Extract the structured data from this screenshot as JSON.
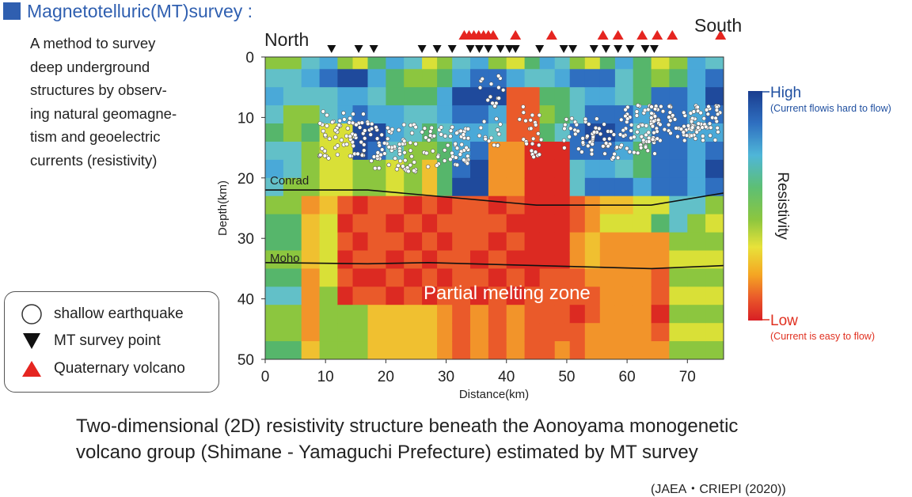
{
  "header": {
    "title": "Magnetotelluric(MT)survey :"
  },
  "description": {
    "lines": [
      "A method to survey",
      "deep underground",
      "structures by observ-",
      "ing natural geomagne-",
      "tism and geoelectric",
      "currents (resistivity)"
    ]
  },
  "legend": {
    "items": [
      {
        "label": "shallow earthquake",
        "symbol": "circle-icon"
      },
      {
        "label": "MT survey point",
        "symbol": "down-triangle-icon"
      },
      {
        "label": "Quaternary volcano",
        "symbol": "up-triangle-icon"
      }
    ]
  },
  "section": {
    "north_label": "North",
    "south_label": "South",
    "conrad_label": "Conrad",
    "moho_label": "Moho",
    "zone_label": "Partial melting zone"
  },
  "chart_data": {
    "type": "heatmap",
    "title": "",
    "xlabel": "Distance(km)",
    "ylabel": "Depth(km)",
    "xlim": [
      0,
      76
    ],
    "ylim": [
      0,
      50
    ],
    "x_ticks": [
      0,
      10,
      20,
      30,
      40,
      50,
      60,
      70
    ],
    "y_ticks": [
      0,
      10,
      20,
      30,
      40,
      50
    ],
    "conrad_line": [
      [
        0,
        22
      ],
      [
        17,
        22
      ],
      [
        45,
        24.5
      ],
      [
        64,
        24.5
      ],
      [
        76,
        22.5
      ]
    ],
    "moho_line": [
      [
        0,
        34
      ],
      [
        17,
        34.2
      ],
      [
        27,
        34
      ],
      [
        45,
        34.5
      ],
      [
        64,
        35
      ],
      [
        76,
        34.5
      ]
    ],
    "mt_points_km": [
      11,
      15.5,
      18,
      26,
      28.5,
      31,
      34,
      35.5,
      37,
      39,
      40.5,
      41.5,
      45.5,
      49.5,
      51,
      54.5,
      56.5,
      58.5,
      60.5,
      63,
      64.5
    ],
    "volcanoes_km": [
      33,
      33.8,
      34.6,
      35.4,
      36.2,
      37,
      37.8,
      41.5,
      47.5,
      56,
      58.5,
      62.5,
      65,
      67.5,
      75.5
    ],
    "colorbar": {
      "label": "Resistivity",
      "high_label": "High",
      "high_note": "(Current flowis hard to flow)",
      "low_label": "Low",
      "low_note": "(Current is easy to flow)",
      "colors": [
        "#1a3d8f",
        "#2e7fc8",
        "#4fb6d8",
        "#5dbf74",
        "#8cc63f",
        "#e8e23a",
        "#f5a623",
        "#ea5a2a",
        "#d81e24"
      ],
      "high_color": "#1f4fa0",
      "low_color": "#e03020"
    }
  },
  "caption": {
    "line1": "Two-dimensional (2D) resistivity structure beneath the Aonoyama monogenetic",
    "line2": "volcano group (Shimane - Yamaguchi Prefecture) estimated by MT survey"
  },
  "source": "(JAEA・CRIEPI (2020))"
}
